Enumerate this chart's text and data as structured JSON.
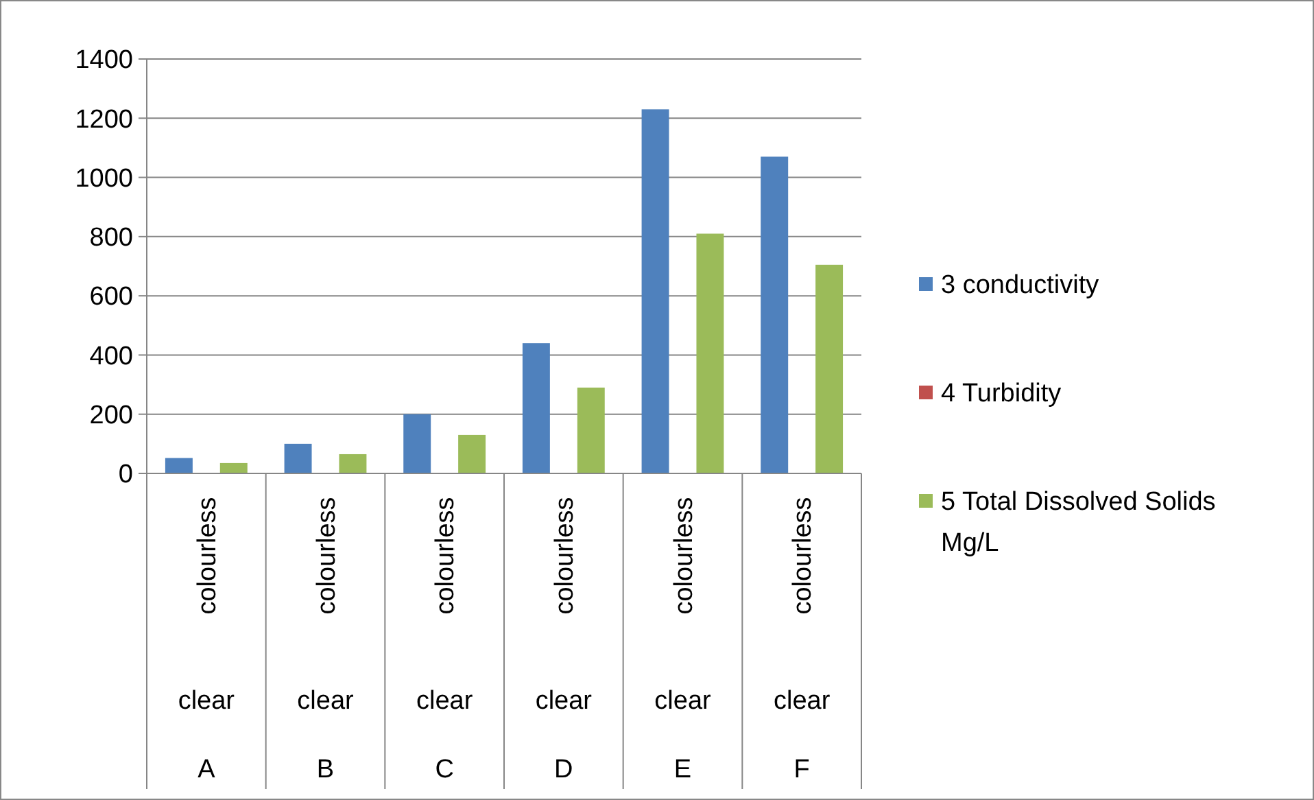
{
  "chart_data": {
    "type": "bar",
    "categories": [
      "colourless\nclear\nA",
      "colourless\nclear\nB",
      "colourless\nclear\nC",
      "colourless\nclear\nD",
      "colourless\nclear\nE",
      "colourless\nclear\nF"
    ],
    "series": [
      {
        "name": "3 conductivity",
        "color": "#4f81bd",
        "values": [
          52,
          100,
          200,
          440,
          1230,
          1070
        ]
      },
      {
        "name": "4 Turbidity",
        "color": "#c0504d",
        "values": [
          0,
          0,
          0,
          0,
          0,
          0
        ]
      },
      {
        "name": "5 Total Dissolved Solids Mg/L",
        "color": "#9bbb59",
        "values": [
          35,
          65,
          130,
          290,
          810,
          705
        ]
      }
    ],
    "ylim": [
      0,
      1400
    ],
    "yticks": [
      0,
      200,
      400,
      600,
      800,
      1000,
      1200,
      1400
    ],
    "grid": "y",
    "legend": "right"
  }
}
